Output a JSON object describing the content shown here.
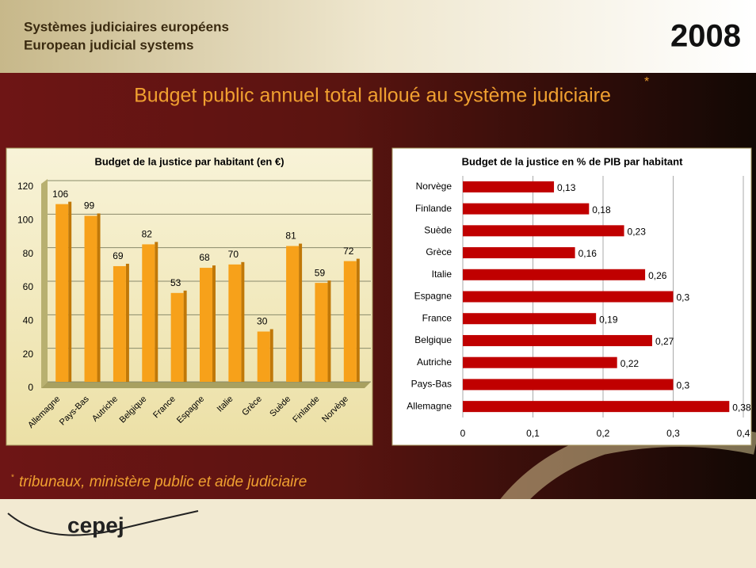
{
  "slide": {
    "header_line1": "Systèmes judiciaires européens",
    "header_line2": "European judicial systems",
    "year": "2008",
    "title": "Budget public annuel total alloué au système judiciaire",
    "title_mark": "*",
    "footnote_mark": "*",
    "footnote": "tribunaux, ministère public et aide judiciaire",
    "logo": "cepej"
  },
  "chart_data": [
    {
      "type": "bar",
      "title": "Budget de la justice par habitant (en €)",
      "color": "#f7a11a",
      "categories": [
        "Allemagne",
        "Pays-Bas",
        "Autriche",
        "Belgique",
        "France",
        "Espagne",
        "Italie",
        "Grèce",
        "Suède",
        "Finlande",
        "Norvège"
      ],
      "values": [
        106,
        99,
        69,
        82,
        53,
        68,
        70,
        30,
        81,
        59,
        72
      ],
      "ylim": [
        0,
        120
      ],
      "yticks": [
        0,
        20,
        40,
        60,
        80,
        100,
        120
      ],
      "grid": true
    },
    {
      "type": "bar",
      "horizontal": true,
      "title": "Budget de la justice  en % de PIB par habitant",
      "color": "#c00000",
      "categories": [
        "Allemagne",
        "Pays-Bas",
        "Autriche",
        "Belgique",
        "France",
        "Espagne",
        "Italie",
        "Grèce",
        "Suède",
        "Finlande",
        "Norvège"
      ],
      "values": [
        0.38,
        0.3,
        0.22,
        0.27,
        0.19,
        0.3,
        0.26,
        0.16,
        0.23,
        0.18,
        0.13
      ],
      "value_labels": [
        "0,38",
        "0,3",
        "0,22",
        "0,27",
        "0,19",
        "0,3",
        "0,26",
        "0,16",
        "0,23",
        "0,18",
        "0,13"
      ],
      "xlim": [
        0,
        0.4
      ],
      "xticks": [
        0,
        {
          "value": 0.1,
          "label": "0,1"
        },
        {
          "value": 0.2,
          "label": "0,2"
        },
        {
          "value": 0.3,
          "label": "0,3"
        },
        {
          "value": 0.4,
          "label": "0,4"
        }
      ],
      "grid": true
    }
  ]
}
